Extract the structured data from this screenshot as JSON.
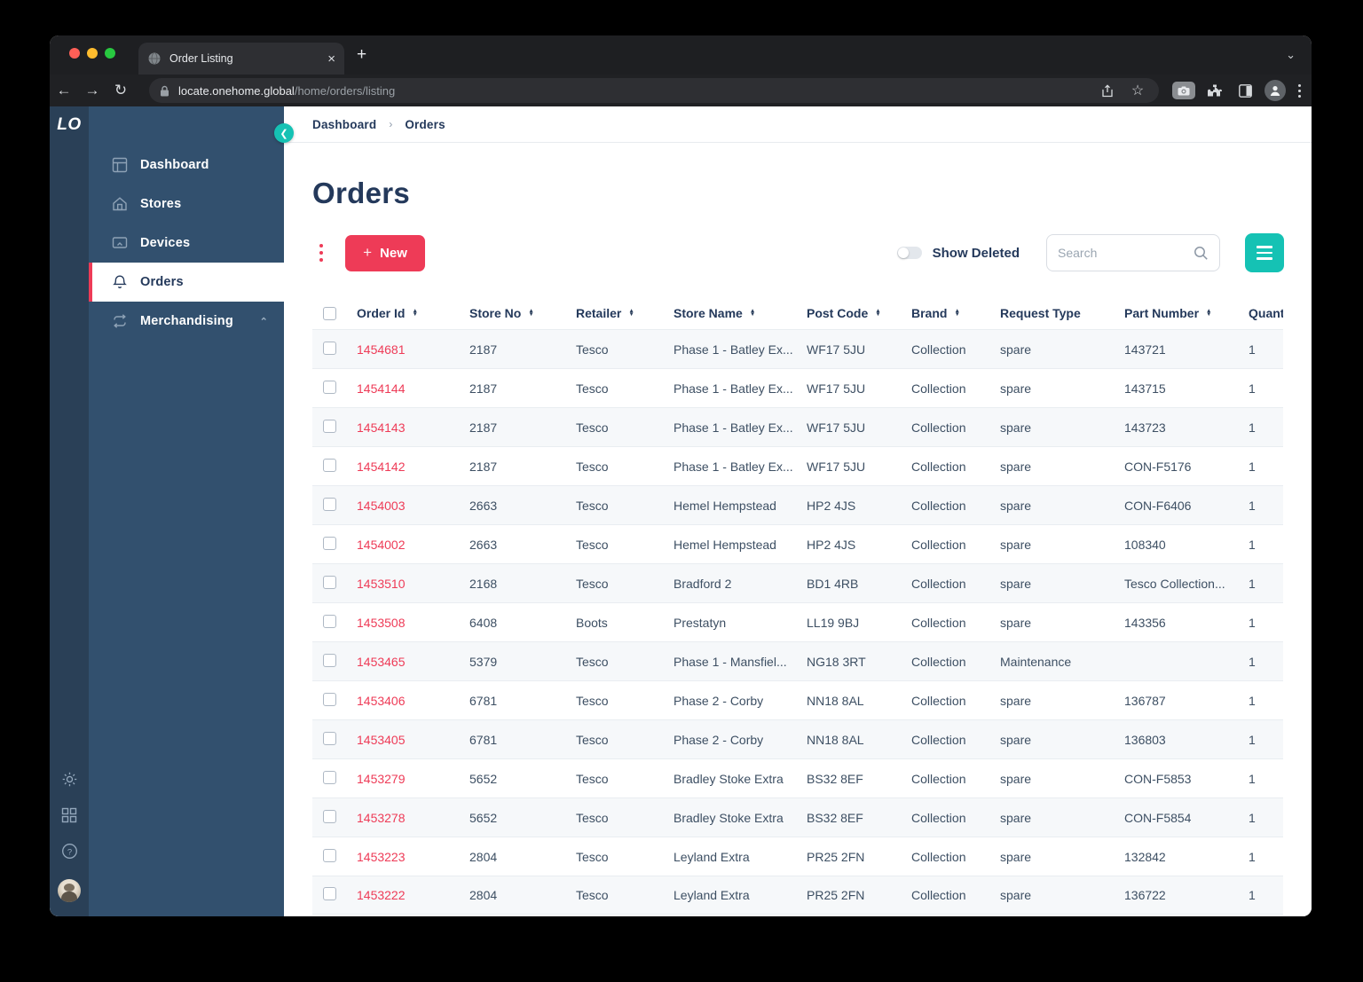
{
  "browser": {
    "tab_title": "Order Listing",
    "close_tab_glyph": "×",
    "new_tab_glyph": "+",
    "url_host": "locate.onehome.global",
    "url_path": "/home/orders/listing",
    "back_glyph": "←",
    "forward_glyph": "→",
    "reload_glyph": "↻"
  },
  "sidebar": {
    "logo": "LO",
    "items": [
      {
        "label": "Dashboard",
        "active": false
      },
      {
        "label": "Stores",
        "active": false
      },
      {
        "label": "Devices",
        "active": false
      },
      {
        "label": "Orders",
        "active": true
      },
      {
        "label": "Merchandising",
        "active": false,
        "expanded": true
      }
    ]
  },
  "breadcrumb": {
    "items": [
      "Dashboard",
      "Orders"
    ],
    "separator": "›"
  },
  "page": {
    "title": "Orders"
  },
  "toolbar": {
    "new_label": "New",
    "new_plus_glyph": "+",
    "show_deleted_label": "Show Deleted",
    "show_deleted_on": false,
    "search_placeholder": "Search"
  },
  "table": {
    "columns": [
      {
        "key": "order_id",
        "label": "Order Id",
        "sortable": true
      },
      {
        "key": "store_no",
        "label": "Store No",
        "sortable": true
      },
      {
        "key": "retailer",
        "label": "Retailer",
        "sortable": true
      },
      {
        "key": "store_name",
        "label": "Store Name",
        "sortable": true
      },
      {
        "key": "post_code",
        "label": "Post Code",
        "sortable": true
      },
      {
        "key": "brand",
        "label": "Brand",
        "sortable": true
      },
      {
        "key": "request_type",
        "label": "Request Type",
        "sortable": false
      },
      {
        "key": "part_number",
        "label": "Part Number",
        "sortable": true
      },
      {
        "key": "quantity",
        "label": "Quantity",
        "sortable": false
      }
    ],
    "rows": [
      {
        "order_id": "1454681",
        "store_no": "2187",
        "retailer": "Tesco",
        "store_name": "Phase 1 - Batley Ex...",
        "post_code": "WF17 5JU",
        "brand": "Collection",
        "request_type": "spare",
        "part_number": "143721",
        "quantity": "1"
      },
      {
        "order_id": "1454144",
        "store_no": "2187",
        "retailer": "Tesco",
        "store_name": "Phase 1 - Batley Ex...",
        "post_code": "WF17 5JU",
        "brand": "Collection",
        "request_type": "spare",
        "part_number": "143715",
        "quantity": "1"
      },
      {
        "order_id": "1454143",
        "store_no": "2187",
        "retailer": "Tesco",
        "store_name": "Phase 1 - Batley Ex...",
        "post_code": "WF17 5JU",
        "brand": "Collection",
        "request_type": "spare",
        "part_number": "143723",
        "quantity": "1"
      },
      {
        "order_id": "1454142",
        "store_no": "2187",
        "retailer": "Tesco",
        "store_name": "Phase 1 - Batley Ex...",
        "post_code": "WF17 5JU",
        "brand": "Collection",
        "request_type": "spare",
        "part_number": "CON-F5176",
        "quantity": "1"
      },
      {
        "order_id": "1454003",
        "store_no": "2663",
        "retailer": "Tesco",
        "store_name": "Hemel Hempstead",
        "post_code": "HP2 4JS",
        "brand": "Collection",
        "request_type": "spare",
        "part_number": "CON-F6406",
        "quantity": "1"
      },
      {
        "order_id": "1454002",
        "store_no": "2663",
        "retailer": "Tesco",
        "store_name": "Hemel Hempstead",
        "post_code": "HP2 4JS",
        "brand": "Collection",
        "request_type": "spare",
        "part_number": "108340",
        "quantity": "1"
      },
      {
        "order_id": "1453510",
        "store_no": "2168",
        "retailer": "Tesco",
        "store_name": "Bradford 2",
        "post_code": "BD1 4RB",
        "brand": "Collection",
        "request_type": "spare",
        "part_number": "Tesco Collection...",
        "quantity": "1"
      },
      {
        "order_id": "1453508",
        "store_no": "6408",
        "retailer": "Boots",
        "store_name": "Prestatyn",
        "post_code": "LL19 9BJ",
        "brand": "Collection",
        "request_type": "spare",
        "part_number": "143356",
        "quantity": "1"
      },
      {
        "order_id": "1453465",
        "store_no": "5379",
        "retailer": "Tesco",
        "store_name": "Phase 1 - Mansfiel...",
        "post_code": "NG18 3RT",
        "brand": "Collection",
        "request_type": "Maintenance",
        "part_number": "",
        "quantity": "1"
      },
      {
        "order_id": "1453406",
        "store_no": "6781",
        "retailer": "Tesco",
        "store_name": "Phase 2 - Corby",
        "post_code": "NN18 8AL",
        "brand": "Collection",
        "request_type": "spare",
        "part_number": "136787",
        "quantity": "1"
      },
      {
        "order_id": "1453405",
        "store_no": "6781",
        "retailer": "Tesco",
        "store_name": "Phase 2 - Corby",
        "post_code": "NN18 8AL",
        "brand": "Collection",
        "request_type": "spare",
        "part_number": "136803",
        "quantity": "1"
      },
      {
        "order_id": "1453279",
        "store_no": "5652",
        "retailer": "Tesco",
        "store_name": "Bradley Stoke Extra",
        "post_code": "BS32 8EF",
        "brand": "Collection",
        "request_type": "spare",
        "part_number": "CON-F5853",
        "quantity": "1"
      },
      {
        "order_id": "1453278",
        "store_no": "5652",
        "retailer": "Tesco",
        "store_name": "Bradley Stoke Extra",
        "post_code": "BS32 8EF",
        "brand": "Collection",
        "request_type": "spare",
        "part_number": "CON-F5854",
        "quantity": "1"
      },
      {
        "order_id": "1453223",
        "store_no": "2804",
        "retailer": "Tesco",
        "store_name": "Leyland Extra",
        "post_code": "PR25 2FN",
        "brand": "Collection",
        "request_type": "spare",
        "part_number": "132842",
        "quantity": "1"
      },
      {
        "order_id": "1453222",
        "store_no": "2804",
        "retailer": "Tesco",
        "store_name": "Leyland Extra",
        "post_code": "PR25 2FN",
        "brand": "Collection",
        "request_type": "spare",
        "part_number": "136722",
        "quantity": "1"
      }
    ]
  },
  "colors": {
    "accent_red": "#ee3b57",
    "accent_teal": "#15c2b4",
    "sidebar_panel": "#32506e",
    "sidebar_rail": "#2a4057",
    "heading_navy": "#24395b",
    "body_text": "#3d4f63",
    "row_alt_bg": "#f6f8fa",
    "traffic_red": "#ff5f57",
    "traffic_yellow": "#febc2e",
    "traffic_green": "#28c840"
  }
}
